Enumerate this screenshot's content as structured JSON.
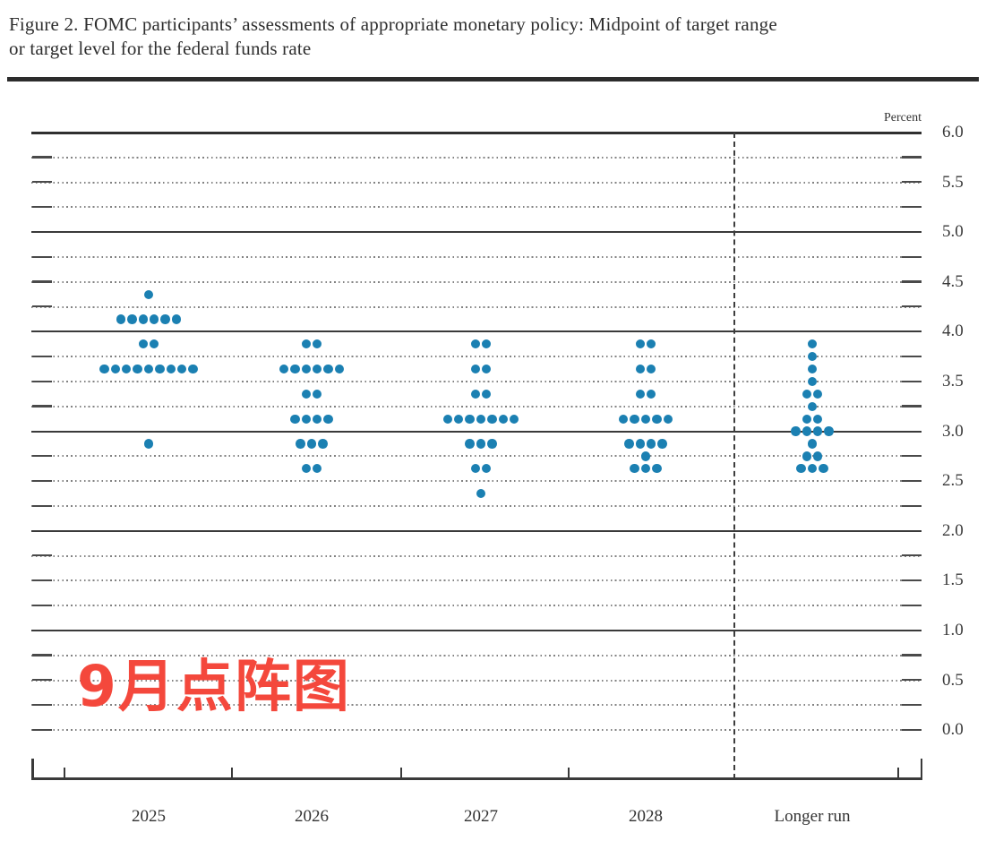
{
  "title": {
    "line1": "Figure 2. FOMC participants’ assessments of appropriate monetary policy: Midpoint of target range",
    "line2": "or target level for the federal funds rate"
  },
  "annotation": {
    "text": "9月点阵图",
    "color": "#f4483c"
  },
  "chart_data": {
    "type": "scatter",
    "title": "FOMC dot plot: Midpoint of target range or target level for the federal funds rate",
    "ylabel": "Percent",
    "ylim": [
      0.0,
      6.0
    ],
    "gridline_step": 0.25,
    "label_step": 0.5,
    "grid_solid_at_integers": true,
    "legend_position": "none",
    "dot_color": "#1b80b2",
    "categories": [
      "2025",
      "2026",
      "2027",
      "2028",
      "Longer run"
    ],
    "series": [
      {
        "category": "2025",
        "dots": [
          {
            "rate": 4.375,
            "count": 1
          },
          {
            "rate": 4.125,
            "count": 6
          },
          {
            "rate": 3.875,
            "count": 2
          },
          {
            "rate": 3.625,
            "count": 9
          },
          {
            "rate": 2.875,
            "count": 1
          }
        ]
      },
      {
        "category": "2026",
        "dots": [
          {
            "rate": 3.875,
            "count": 2
          },
          {
            "rate": 3.625,
            "count": 6
          },
          {
            "rate": 3.375,
            "count": 2
          },
          {
            "rate": 3.125,
            "count": 4
          },
          {
            "rate": 2.875,
            "count": 3
          },
          {
            "rate": 2.625,
            "count": 2
          }
        ]
      },
      {
        "category": "2027",
        "dots": [
          {
            "rate": 3.875,
            "count": 2
          },
          {
            "rate": 3.625,
            "count": 2
          },
          {
            "rate": 3.375,
            "count": 2
          },
          {
            "rate": 3.125,
            "count": 7
          },
          {
            "rate": 2.875,
            "count": 3
          },
          {
            "rate": 2.625,
            "count": 2
          },
          {
            "rate": 2.375,
            "count": 1
          }
        ]
      },
      {
        "category": "2028",
        "dots": [
          {
            "rate": 3.875,
            "count": 2
          },
          {
            "rate": 3.625,
            "count": 2
          },
          {
            "rate": 3.375,
            "count": 2
          },
          {
            "rate": 3.125,
            "count": 5
          },
          {
            "rate": 2.875,
            "count": 4
          },
          {
            "rate": 2.75,
            "count": 1
          },
          {
            "rate": 2.625,
            "count": 3
          }
        ]
      },
      {
        "category": "Longer run",
        "dots": [
          {
            "rate": 3.875,
            "count": 1
          },
          {
            "rate": 3.75,
            "count": 1
          },
          {
            "rate": 3.625,
            "count": 1
          },
          {
            "rate": 3.5,
            "count": 1
          },
          {
            "rate": 3.375,
            "count": 2
          },
          {
            "rate": 3.25,
            "count": 1
          },
          {
            "rate": 3.125,
            "count": 2
          },
          {
            "rate": 3.0,
            "count": 4
          },
          {
            "rate": 2.875,
            "count": 1
          },
          {
            "rate": 2.75,
            "count": 2
          },
          {
            "rate": 2.625,
            "count": 3
          }
        ]
      }
    ],
    "ytick_labels": [
      "6.0",
      "5.5",
      "5.0",
      "4.5",
      "4.0",
      "3.5",
      "3.0",
      "2.5",
      "2.0",
      "1.5",
      "1.0",
      "0.5",
      "0.0"
    ]
  }
}
